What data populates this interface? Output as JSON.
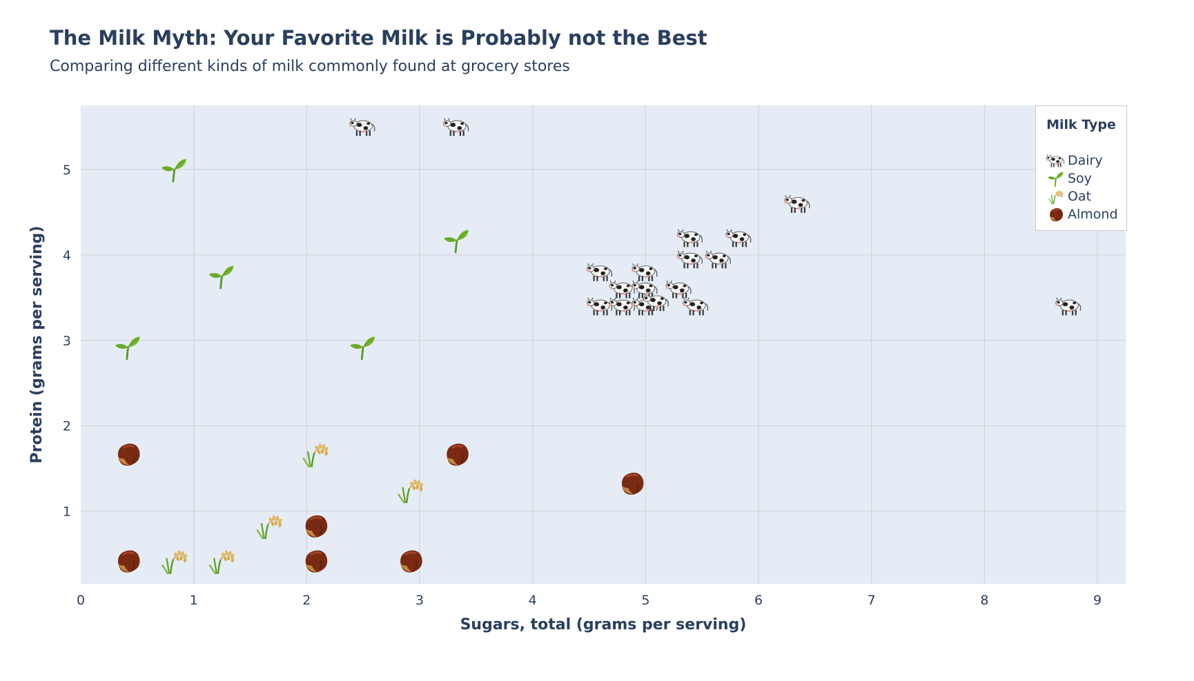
{
  "header": {
    "title": "The Milk Myth: Your Favorite Milk is Probably not the Best",
    "subtitle": "Comparing different kinds of milk commonly found at grocery stores"
  },
  "legend": {
    "title": "Milk Type",
    "items": [
      {
        "label": "Dairy",
        "icon": "cow-icon"
      },
      {
        "label": "Soy",
        "icon": "sprout-icon"
      },
      {
        "label": "Oat",
        "icon": "oat-icon"
      },
      {
        "label": "Almond",
        "icon": "nut-icon"
      }
    ]
  },
  "chart_data": {
    "type": "scatter",
    "title": "The Milk Myth: Your Favorite Milk is Probably not the Best",
    "subtitle": "Comparing different kinds of milk commonly found at grocery stores",
    "xlabel": "Sugars, total (grams per serving)",
    "ylabel": "Protein (grams per serving)",
    "xlim": [
      0,
      9.25
    ],
    "ylim": [
      0.15,
      5.75
    ],
    "xticks": [
      0,
      1,
      2,
      3,
      4,
      5,
      6,
      7,
      8,
      9
    ],
    "yticks": [
      1,
      2,
      3,
      4,
      5
    ],
    "grid": true,
    "legend_position": "top-right",
    "plot_background": "#e5ecf6",
    "series": [
      {
        "name": "Dairy",
        "marker": "cow-icon",
        "x": [
          2.5,
          3.33,
          6.35,
          5.4,
          5.83,
          5.4,
          5.65,
          4.6,
          5.0,
          4.8,
          5.0,
          5.3,
          4.6,
          4.8,
          5.0,
          5.1,
          5.45,
          8.75
        ],
        "y": [
          5.5,
          5.5,
          4.6,
          4.2,
          4.2,
          3.95,
          3.95,
          3.8,
          3.8,
          3.6,
          3.6,
          3.6,
          3.4,
          3.4,
          3.4,
          3.45,
          3.4,
          3.4
        ]
      },
      {
        "name": "Soy",
        "marker": "sprout-icon",
        "x": [
          0.83,
          3.33,
          1.25,
          0.42,
          2.5
        ],
        "y": [
          5.0,
          4.17,
          3.75,
          2.92,
          2.92
        ]
      },
      {
        "name": "Oat",
        "marker": "oat-icon",
        "x": [
          0.83,
          1.25,
          1.67,
          2.08,
          2.92
        ],
        "y": [
          0.42,
          0.42,
          0.83,
          1.67,
          1.25
        ]
      },
      {
        "name": "Almond",
        "marker": "nut-icon",
        "x": [
          0.42,
          0.42,
          2.08,
          2.08,
          2.92,
          3.33,
          4.88
        ],
        "y": [
          1.67,
          0.42,
          0.83,
          0.42,
          0.42,
          1.67,
          1.33
        ]
      }
    ]
  }
}
